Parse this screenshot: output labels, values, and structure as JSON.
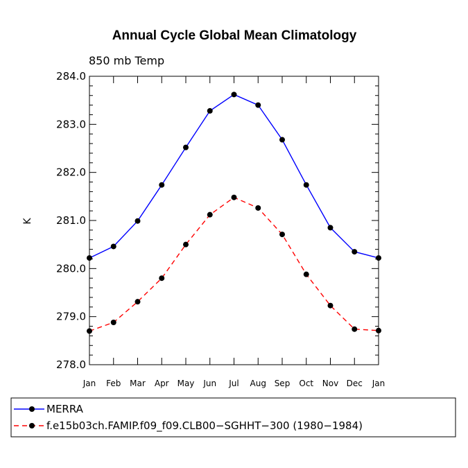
{
  "chart_data": {
    "type": "line",
    "title": "Annual Cycle Global Mean Climatology",
    "subtitle": "850 mb Temp",
    "xlabel": "",
    "ylabel": "K",
    "categories": [
      "Jan",
      "Feb",
      "Mar",
      "Apr",
      "May",
      "Jun",
      "Jul",
      "Aug",
      "Sep",
      "Oct",
      "Nov",
      "Dec",
      "Jan"
    ],
    "ylim": [
      278.0,
      284.0
    ],
    "yticks": [
      "278.0",
      "279.0",
      "280.0",
      "281.0",
      "282.0",
      "283.0",
      "284.0"
    ],
    "series": [
      {
        "name": "MERRA",
        "color": "#0000ff",
        "dash": "solid",
        "values": [
          280.22,
          280.46,
          280.99,
          281.74,
          282.52,
          283.28,
          283.62,
          283.4,
          282.68,
          281.74,
          280.85,
          280.35,
          280.22
        ]
      },
      {
        "name": "f.e15b03ch.FAMIP.f09_f09.CLB00−SGHHT−300 (1980−1984)",
        "color": "#ff0000",
        "dash": "dashed",
        "values": [
          278.7,
          278.88,
          279.31,
          279.8,
          280.5,
          281.12,
          281.48,
          281.26,
          280.71,
          279.88,
          279.23,
          278.74,
          278.71
        ]
      }
    ],
    "legend": "bottom"
  }
}
